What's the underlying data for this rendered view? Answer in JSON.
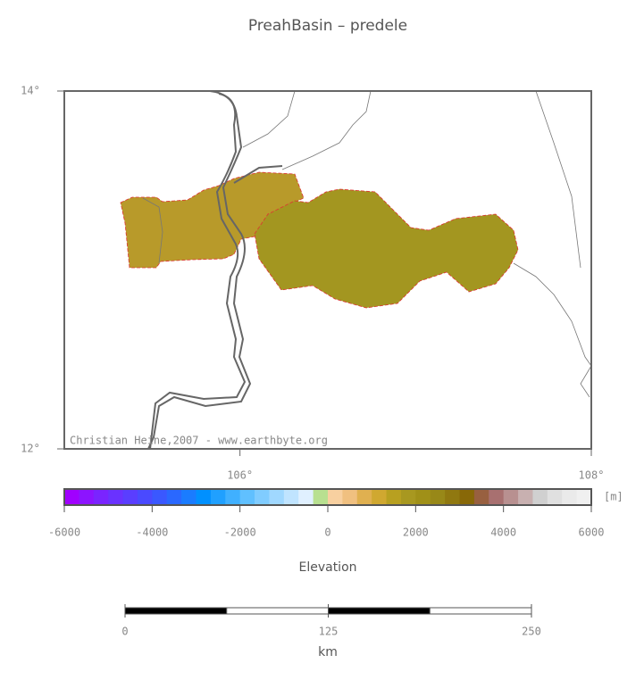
{
  "title": "PreahBasin – predele",
  "map": {
    "xlim": [
      105,
      108
    ],
    "ylim": [
      12,
      14
    ],
    "xticks": [
      {
        "value": 106,
        "label": "106°"
      },
      {
        "value": 108,
        "label": "108°"
      }
    ],
    "yticks": [
      {
        "value": 12,
        "label": "12°"
      },
      {
        "value": 14,
        "label": "14°"
      }
    ],
    "credit": "Christian Heine,2007 - www.earthbyte.org"
  },
  "colorbar": {
    "lim": [
      -6000,
      6000
    ],
    "ticks": [
      -6000,
      -4000,
      -2000,
      0,
      2000,
      4000,
      6000
    ],
    "unit": "[m]",
    "label": "Elevation",
    "colors": [
      "#a000ff",
      "#8c14ff",
      "#7a24ff",
      "#6a32ff",
      "#5a3eff",
      "#4a4aff",
      "#3a58ff",
      "#2a68ff",
      "#1a7cff",
      "#0090ff",
      "#20a0ff",
      "#40b0ff",
      "#60c0ff",
      "#80ccff",
      "#a0d8ff",
      "#c0e4ff",
      "#e0f0ff",
      "#b8e090",
      "#f8d0a0",
      "#f0c080",
      "#e0b050",
      "#d0a830",
      "#b8a020",
      "#a89820",
      "#a09018",
      "#988818",
      "#907810",
      "#886808",
      "#986040",
      "#a87070",
      "#b89090",
      "#c8b0b0",
      "#d0d0d0",
      "#e0e0e0",
      "#eaeaea",
      "#f0f0f0"
    ]
  },
  "scalebar": {
    "lim": [
      0,
      250
    ],
    "ticks": [
      0,
      125,
      250
    ],
    "label": "km"
  }
}
